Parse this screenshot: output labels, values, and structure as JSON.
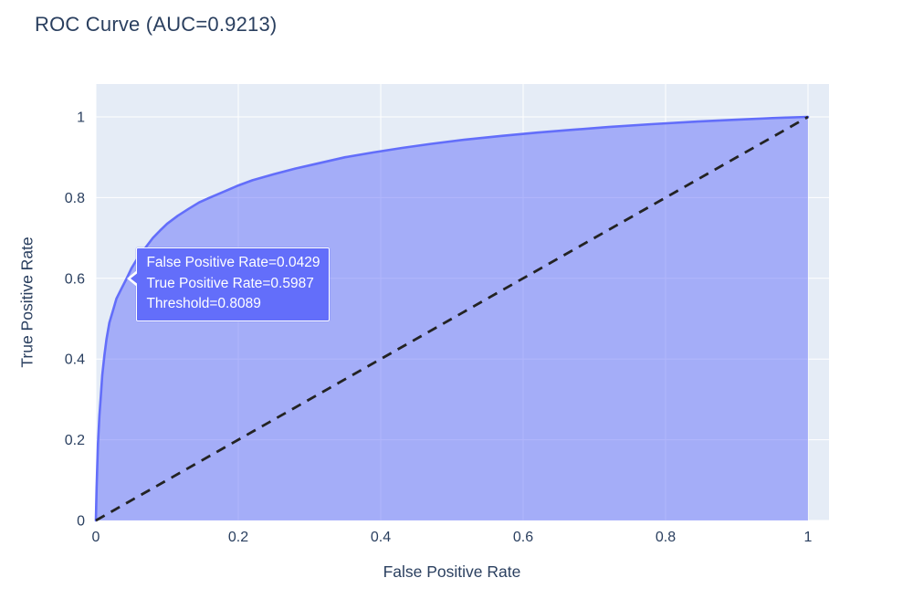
{
  "title": "ROC Curve (AUC=0.9213)",
  "colors": {
    "title_text": "#2a3f5f",
    "tick_text": "#2a3f5f",
    "plot_bg": "#e5ecf6",
    "grid": "#ffffff",
    "curve": "#636efa",
    "curve_fill": "rgba(99,110,250,0.5)",
    "diagonal": "#232323",
    "tooltip_bg": "#636efa",
    "tooltip_text": "#ffffff",
    "tooltip_border": "#ffffff"
  },
  "tooltip": {
    "lines": [
      "False Positive Rate=0.0429",
      "True Positive Rate=0.5987",
      "Threshold=0.8089"
    ],
    "point": {
      "fpr": 0.0429,
      "tpr": 0.5987
    }
  },
  "chart_data": {
    "type": "line",
    "title": "ROC Curve (AUC=0.9213)",
    "auc": 0.9213,
    "xlabel": "False Positive Rate",
    "ylabel": "True Positive Rate",
    "xlim": [
      0,
      1
    ],
    "ylim": [
      0,
      1
    ],
    "grid": true,
    "legend": "none",
    "x_ticks": [
      "0",
      "0.2",
      "0.4",
      "0.6",
      "0.8",
      "1"
    ],
    "y_ticks": [
      "0",
      "0.2",
      "0.4",
      "0.6",
      "0.8",
      "1"
    ],
    "hover_point": {
      "false_positive_rate": 0.0429,
      "true_positive_rate": 0.5987,
      "threshold": 0.8089
    },
    "series": [
      {
        "name": "ROC curve",
        "style": "solid-filled",
        "x": [
          0,
          0.001,
          0.002,
          0.003,
          0.005,
          0.007,
          0.009,
          0.012,
          0.015,
          0.019,
          0.024,
          0.029,
          0.036,
          0.0429,
          0.05,
          0.058,
          0.068,
          0.08,
          0.09,
          0.1,
          0.115,
          0.13,
          0.145,
          0.16,
          0.18,
          0.2,
          0.22,
          0.25,
          0.28,
          0.31,
          0.35,
          0.39,
          0.43,
          0.47,
          0.52,
          0.57,
          0.62,
          0.67,
          0.72,
          0.78,
          0.84,
          0.9,
          0.95,
          1
        ],
        "y": [
          0,
          0.08,
          0.14,
          0.19,
          0.26,
          0.31,
          0.36,
          0.41,
          0.45,
          0.49,
          0.52,
          0.55,
          0.575,
          0.5987,
          0.625,
          0.648,
          0.672,
          0.7,
          0.718,
          0.735,
          0.755,
          0.772,
          0.788,
          0.8,
          0.815,
          0.83,
          0.843,
          0.858,
          0.872,
          0.884,
          0.9,
          0.912,
          0.923,
          0.933,
          0.944,
          0.953,
          0.961,
          0.968,
          0.975,
          0.982,
          0.988,
          0.993,
          0.997,
          1
        ]
      },
      {
        "name": "Chance diagonal",
        "style": "dashed",
        "x": [
          0,
          1
        ],
        "y": [
          0,
          1
        ]
      }
    ]
  }
}
